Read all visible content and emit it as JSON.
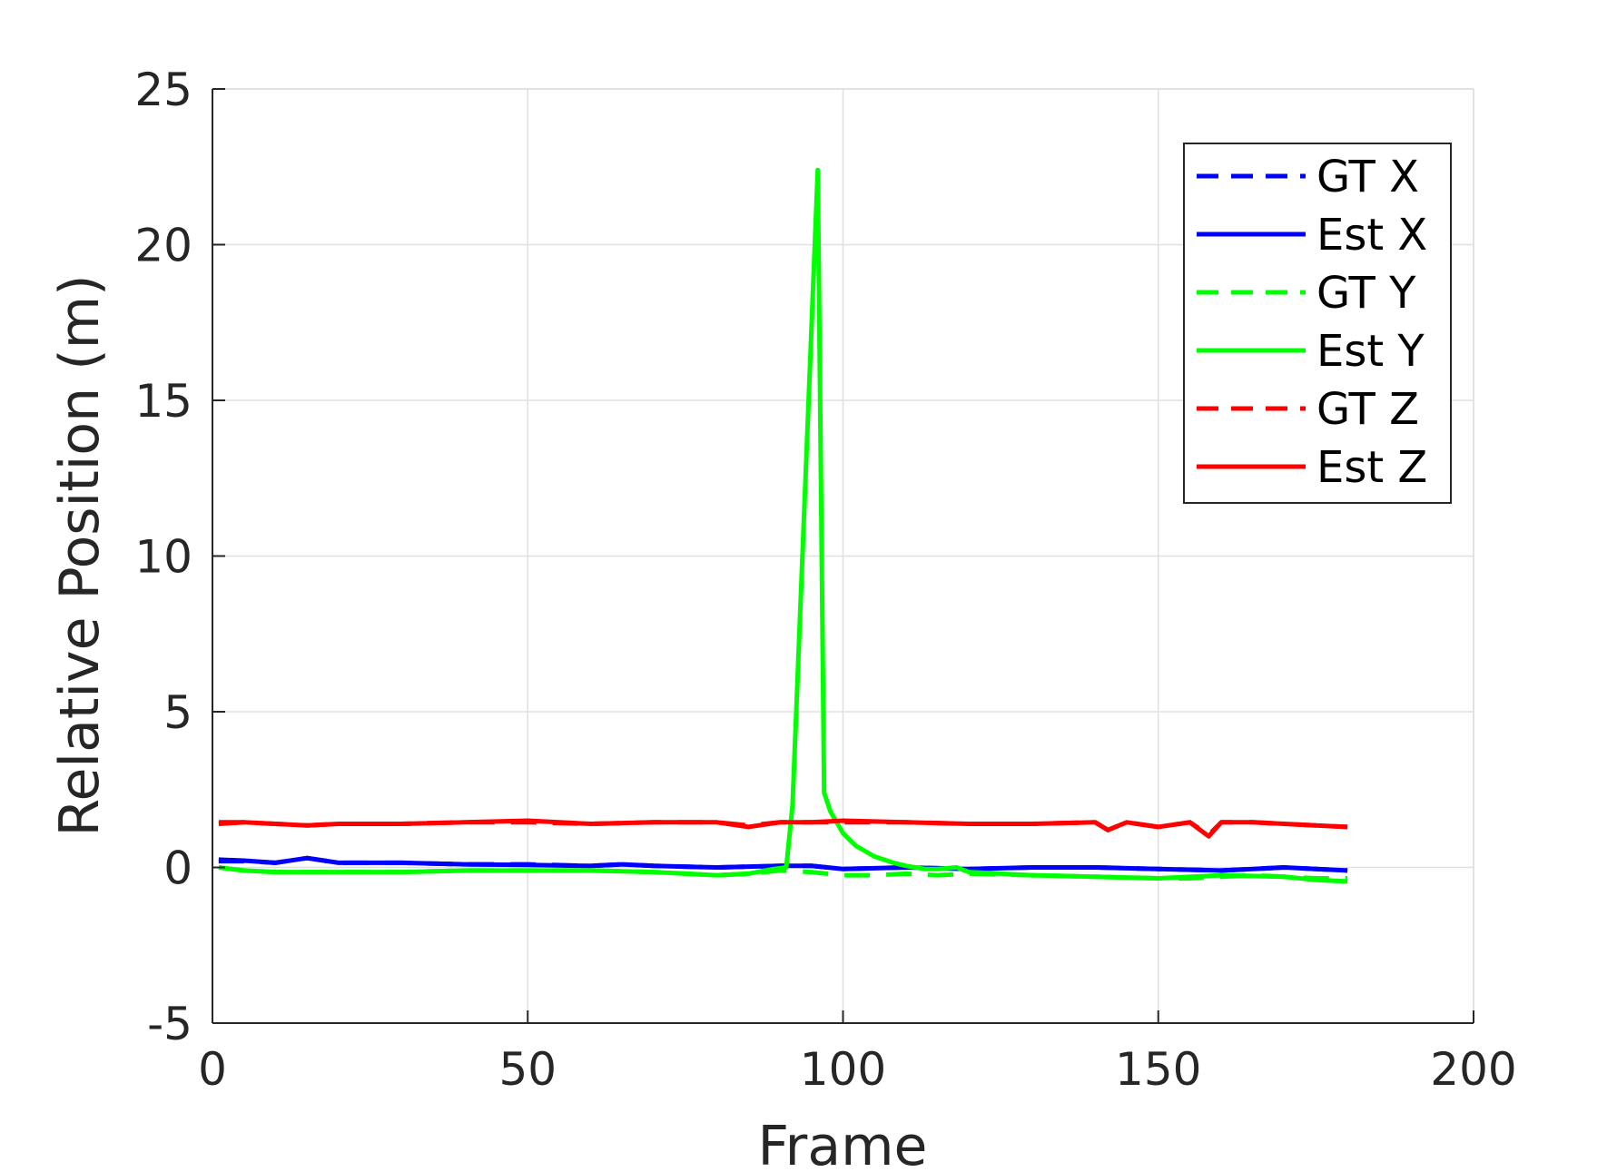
{
  "chart_data": {
    "type": "line",
    "title": "",
    "xlabel": "Frame",
    "ylabel": "Relative Position (m)",
    "xlim": [
      0,
      200
    ],
    "ylim": [
      -5,
      25
    ],
    "xticks": [
      0,
      50,
      100,
      150,
      200
    ],
    "yticks": [
      -5,
      0,
      5,
      10,
      15,
      20,
      25
    ],
    "xtick_labels": [
      "0",
      "50",
      "100",
      "150",
      "200"
    ],
    "ytick_labels": [
      "-5",
      "0",
      "5",
      "10",
      "15",
      "20",
      "25"
    ],
    "grid": true,
    "legend_position": "top-right",
    "series": [
      {
        "name": "GT X",
        "style": "dashed",
        "color": "#0000ff",
        "x": [
          1,
          5,
          10,
          15,
          20,
          30,
          40,
          50,
          60,
          65,
          70,
          80,
          90,
          95,
          100,
          110,
          120,
          130,
          140,
          150,
          160,
          165,
          170,
          175,
          180
        ],
        "y": [
          0.2,
          0.2,
          0.15,
          0.3,
          0.15,
          0.15,
          0.1,
          0.1,
          0.05,
          0.1,
          0.05,
          0.0,
          0.05,
          0.05,
          -0.05,
          0.0,
          -0.05,
          0.0,
          0.0,
          -0.05,
          -0.1,
          -0.05,
          0.0,
          -0.05,
          -0.1
        ]
      },
      {
        "name": "Est X",
        "style": "solid",
        "color": "#0000ff",
        "x": [
          1,
          5,
          10,
          15,
          20,
          30,
          40,
          50,
          60,
          65,
          70,
          80,
          90,
          95,
          100,
          110,
          120,
          130,
          140,
          150,
          160,
          165,
          170,
          175,
          180
        ],
        "y": [
          0.25,
          0.22,
          0.15,
          0.3,
          0.15,
          0.15,
          0.1,
          0.08,
          0.05,
          0.1,
          0.05,
          0.0,
          0.05,
          0.05,
          -0.05,
          0.0,
          -0.05,
          0.0,
          0.0,
          -0.05,
          -0.1,
          -0.05,
          0.0,
          -0.05,
          -0.1
        ]
      },
      {
        "name": "GT Y",
        "style": "dashed",
        "color": "#00ff00",
        "x": [
          1,
          5,
          10,
          20,
          30,
          40,
          50,
          60,
          70,
          80,
          85,
          90,
          95,
          100,
          105,
          110,
          115,
          120,
          130,
          140,
          150,
          155,
          160,
          165,
          170,
          175,
          180
        ],
        "y": [
          0.0,
          -0.1,
          -0.15,
          -0.15,
          -0.15,
          -0.1,
          -0.1,
          -0.1,
          -0.15,
          -0.25,
          -0.2,
          -0.1,
          -0.15,
          -0.25,
          -0.25,
          -0.2,
          -0.25,
          -0.2,
          -0.25,
          -0.3,
          -0.35,
          -0.35,
          -0.3,
          -0.25,
          -0.3,
          -0.35,
          -0.35
        ]
      },
      {
        "name": "Est Y",
        "style": "solid",
        "color": "#00ff00",
        "x": [
          1,
          5,
          10,
          20,
          30,
          40,
          50,
          60,
          70,
          80,
          85,
          89,
          91,
          92,
          96,
          97,
          98,
          100,
          102,
          105,
          108,
          110,
          113,
          115,
          118,
          120,
          130,
          140,
          150,
          160,
          170,
          175,
          180
        ],
        "y": [
          0.0,
          -0.1,
          -0.15,
          -0.15,
          -0.15,
          -0.1,
          -0.1,
          -0.1,
          -0.15,
          -0.25,
          -0.2,
          -0.05,
          0.0,
          2.0,
          22.4,
          2.4,
          1.8,
          1.1,
          0.7,
          0.35,
          0.15,
          0.05,
          -0.05,
          -0.05,
          0.0,
          -0.15,
          -0.25,
          -0.3,
          -0.35,
          -0.25,
          -0.3,
          -0.4,
          -0.45
        ]
      },
      {
        "name": "GT Z",
        "style": "dashed",
        "color": "#ff0000",
        "x": [
          1,
          5,
          10,
          15,
          20,
          30,
          40,
          50,
          60,
          70,
          80,
          85,
          90,
          95,
          100,
          110,
          120,
          130,
          140,
          142,
          145,
          150,
          155,
          158,
          160,
          165,
          170,
          175,
          180
        ],
        "y": [
          1.45,
          1.45,
          1.4,
          1.35,
          1.4,
          1.4,
          1.45,
          1.45,
          1.4,
          1.45,
          1.45,
          1.35,
          1.45,
          1.45,
          1.45,
          1.45,
          1.4,
          1.4,
          1.45,
          1.2,
          1.45,
          1.3,
          1.45,
          1.05,
          1.45,
          1.45,
          1.4,
          1.35,
          1.3
        ]
      },
      {
        "name": "Est Z",
        "style": "solid",
        "color": "#ff0000",
        "x": [
          1,
          5,
          10,
          15,
          20,
          30,
          40,
          50,
          60,
          70,
          80,
          85,
          90,
          95,
          100,
          110,
          120,
          130,
          140,
          142,
          145,
          150,
          155,
          158,
          160,
          165,
          170,
          175,
          180
        ],
        "y": [
          1.4,
          1.45,
          1.4,
          1.35,
          1.4,
          1.4,
          1.45,
          1.5,
          1.4,
          1.45,
          1.45,
          1.3,
          1.45,
          1.45,
          1.5,
          1.45,
          1.4,
          1.4,
          1.45,
          1.2,
          1.45,
          1.3,
          1.45,
          1.0,
          1.45,
          1.45,
          1.4,
          1.35,
          1.3
        ]
      }
    ]
  }
}
